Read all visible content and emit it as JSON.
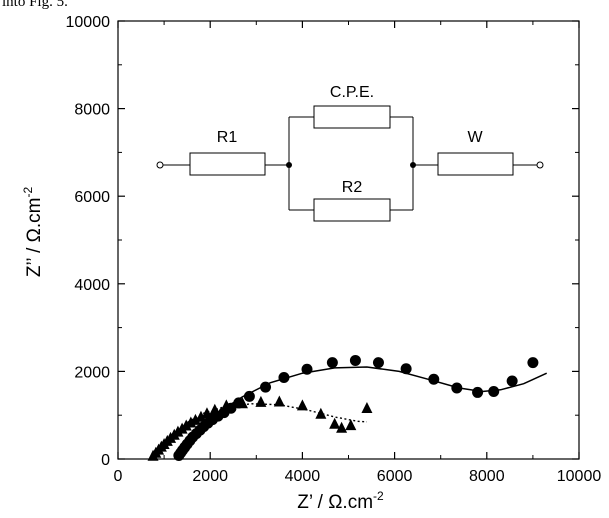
{
  "caption_fragment": "into Fig. 5.",
  "chart_data": {
    "type": "scatter",
    "xlabel_main": "Z’ / Ω.cm",
    "xlabel_sup": "-2",
    "ylabel_main": "Z’’ / Ω.cm",
    "ylabel_sup": "-2",
    "xlim": [
      0,
      10000
    ],
    "ylim": [
      0,
      10000
    ],
    "x_ticks": [
      0,
      2000,
      4000,
      6000,
      8000,
      10000
    ],
    "y_ticks": [
      0,
      2000,
      4000,
      6000,
      8000,
      10000
    ],
    "grid": false,
    "circuit": {
      "r1_label": "R1",
      "cpe_label": "C.P.E.",
      "r2_label": "R2",
      "w_label": "W"
    },
    "series": [
      {
        "marker": "circle",
        "color": "#000000",
        "points": [
          [
            1320,
            80
          ],
          [
            1360,
            140
          ],
          [
            1400,
            200
          ],
          [
            1450,
            270
          ],
          [
            1500,
            340
          ],
          [
            1560,
            420
          ],
          [
            1620,
            500
          ],
          [
            1700,
            580
          ],
          [
            1780,
            660
          ],
          [
            1860,
            740
          ],
          [
            1950,
            820
          ],
          [
            2050,
            900
          ],
          [
            2170,
            980
          ],
          [
            2300,
            1060
          ],
          [
            2450,
            1160
          ],
          [
            2620,
            1280
          ],
          [
            2850,
            1430
          ],
          [
            3200,
            1640
          ],
          [
            3600,
            1860
          ],
          [
            4100,
            2050
          ],
          [
            4650,
            2200
          ],
          [
            5150,
            2250
          ],
          [
            5650,
            2200
          ],
          [
            6250,
            2060
          ],
          [
            6850,
            1820
          ],
          [
            7350,
            1620
          ],
          [
            7800,
            1520
          ],
          [
            8150,
            1540
          ],
          [
            8550,
            1780
          ],
          [
            9000,
            2200
          ]
        ]
      },
      {
        "marker": "triangle",
        "color": "#000000",
        "points": [
          [
            760,
            60
          ],
          [
            820,
            130
          ],
          [
            880,
            200
          ],
          [
            940,
            270
          ],
          [
            1000,
            330
          ],
          [
            1070,
            400
          ],
          [
            1140,
            470
          ],
          [
            1220,
            540
          ],
          [
            1300,
            610
          ],
          [
            1390,
            680
          ],
          [
            1480,
            750
          ],
          [
            1580,
            820
          ],
          [
            1680,
            880
          ],
          [
            1800,
            950
          ],
          [
            1930,
            1030
          ],
          [
            2100,
            1110
          ],
          [
            2350,
            1210
          ],
          [
            2700,
            1260
          ],
          [
            3100,
            1290
          ],
          [
            3500,
            1300
          ],
          [
            4000,
            1210
          ],
          [
            4400,
            1020
          ],
          [
            4700,
            790
          ],
          [
            4850,
            700
          ],
          [
            5050,
            760
          ],
          [
            5400,
            1150
          ]
        ]
      }
    ],
    "fit_lines": [
      {
        "style": "solid",
        "color": "#000000",
        "points": [
          [
            1300,
            50
          ],
          [
            1420,
            230
          ],
          [
            1600,
            470
          ],
          [
            1850,
            760
          ],
          [
            2200,
            1080
          ],
          [
            2700,
            1420
          ],
          [
            3300,
            1740
          ],
          [
            4000,
            1960
          ],
          [
            4700,
            2080
          ],
          [
            5400,
            2100
          ],
          [
            6100,
            2000
          ],
          [
            6800,
            1800
          ],
          [
            7400,
            1620
          ],
          [
            7900,
            1540
          ],
          [
            8300,
            1580
          ],
          [
            8800,
            1720
          ],
          [
            9300,
            1960
          ]
        ]
      },
      {
        "style": "dotted",
        "color": "#000000",
        "points": [
          [
            760,
            30
          ],
          [
            950,
            260
          ],
          [
            1200,
            560
          ],
          [
            1500,
            830
          ],
          [
            1850,
            1040
          ],
          [
            2300,
            1190
          ],
          [
            2900,
            1260
          ],
          [
            3500,
            1240
          ],
          [
            4100,
            1120
          ],
          [
            4700,
            960
          ],
          [
            5200,
            860
          ],
          [
            5400,
            850
          ]
        ]
      }
    ]
  }
}
